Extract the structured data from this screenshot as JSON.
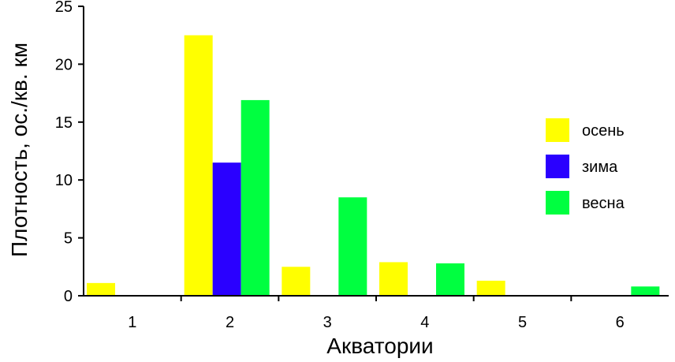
{
  "chart_data": {
    "type": "bar",
    "title": "",
    "xlabel": "Акватории",
    "ylabel": "Плотность, ос./кв. км",
    "categories": [
      "1",
      "2",
      "3",
      "4",
      "5",
      "6"
    ],
    "ylim": [
      0,
      25
    ],
    "yticks": [
      "0",
      "5",
      "10",
      "15",
      "20",
      "25"
    ],
    "grid": false,
    "legend_position": "right",
    "series": [
      {
        "name": "осень",
        "color": "#ffff00",
        "values": [
          1.1,
          22.5,
          2.5,
          2.9,
          1.3,
          0
        ]
      },
      {
        "name": "зима",
        "color": "#2a00ff",
        "values": [
          0,
          11.5,
          0,
          0,
          0,
          0
        ]
      },
      {
        "name": "весна",
        "color": "#00ff40",
        "values": [
          0,
          16.9,
          8.5,
          2.8,
          0,
          0.8
        ]
      }
    ]
  }
}
